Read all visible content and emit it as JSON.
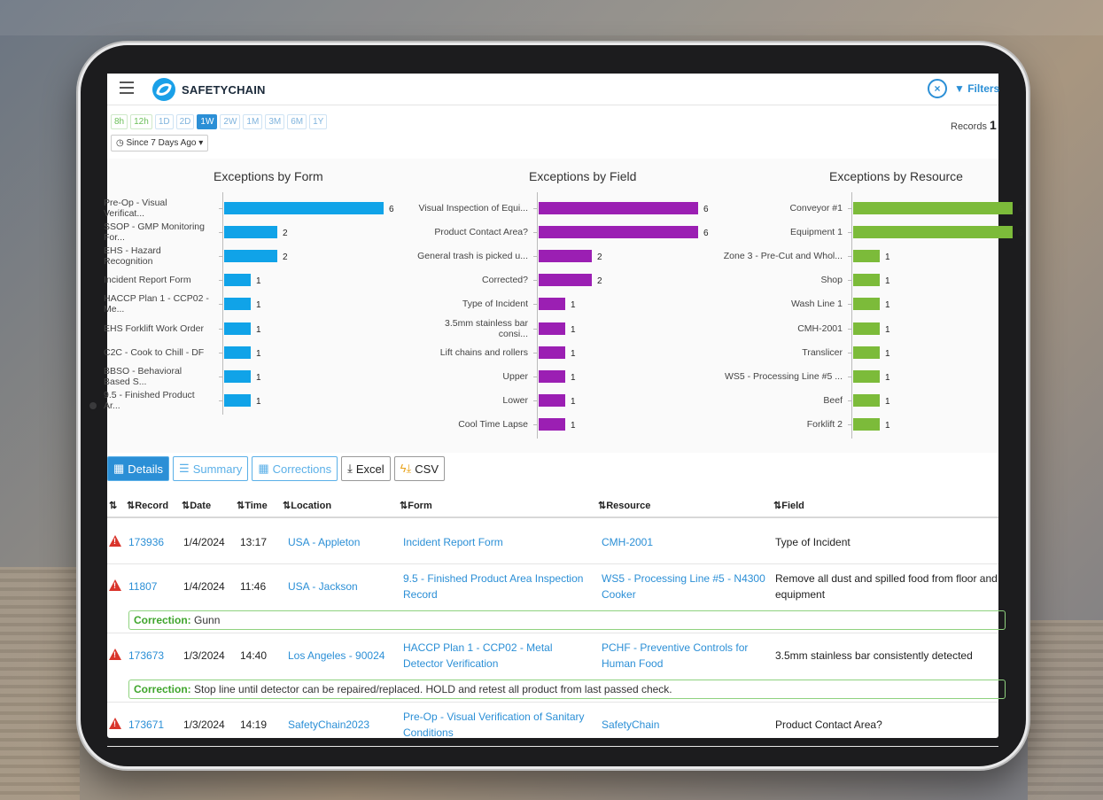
{
  "app": {
    "name_bold": "SAFETY",
    "name_rest": "CHAIN",
    "filters_label": "Filters",
    "clear_label": "×"
  },
  "ranges": [
    "8h",
    "12h",
    "1D",
    "2D",
    "1W",
    "2W",
    "1M",
    "3M",
    "6M",
    "1Y"
  ],
  "active_range": "1W",
  "since_label": "Since 7 Days Ago",
  "records_label": "Records",
  "records_count": "1",
  "chart_data": [
    {
      "type": "bar",
      "title": "Exceptions by Form",
      "categories": [
        "Pre-Op - Visual Verificat...",
        "SSOP - GMP Monitoring For...",
        "EHS - Hazard Recognition",
        "Incident Report Form",
        "HACCP Plan 1 - CCP02 - Me...",
        "EHS Forklift Work Order",
        "C2C - Cook to Chill - DF",
        "BBSO - Behavioral Based S...",
        "9.5 - Finished Product Ar..."
      ],
      "values": [
        6,
        2,
        2,
        1,
        1,
        1,
        1,
        1,
        1
      ],
      "color": "#10a3e8"
    },
    {
      "type": "bar",
      "title": "Exceptions by Field",
      "categories": [
        "Visual Inspection of Equi...",
        "Product Contact Area?",
        "General trash is picked u...",
        "Corrected?",
        "Type of Incident",
        "3.5mm stainless bar consi...",
        "Lift chains and rollers",
        "Upper",
        "Lower",
        "Cool Time Lapse"
      ],
      "values": [
        6,
        6,
        2,
        2,
        1,
        1,
        1,
        1,
        1,
        1
      ],
      "color": "#9b1fb3"
    },
    {
      "type": "bar",
      "title": "Exceptions by Resource",
      "categories": [
        "Conveyor #1",
        "Equipment 1",
        "Zone 3 - Pre-Cut and Whol...",
        "Shop",
        "Wash Line 1",
        "CMH-2001",
        "Translicer",
        "WS5 - Processing Line #5 ...",
        "Beef",
        "Forklift 2"
      ],
      "values": [
        6,
        6,
        1,
        1,
        1,
        1,
        1,
        1,
        1,
        1
      ],
      "color": "#7cbb3a"
    }
  ],
  "tabs": {
    "details": "Details",
    "summary": "Summary",
    "corrections": "Corrections",
    "excel": "Excel",
    "csv": "CSV"
  },
  "table": {
    "headers": {
      "record": "Record",
      "date": "Date",
      "time": "Time",
      "location": "Location",
      "form": "Form",
      "resource": "Resource",
      "field": "Field"
    },
    "rows": [
      {
        "record": "173936",
        "date": "1/4/2024",
        "time": "13:17",
        "location": "USA - Appleton",
        "form": "Incident Report Form",
        "resource": "CMH-2001",
        "field": "Type of Incident"
      },
      {
        "record": "11807",
        "date": "1/4/2024",
        "time": "11:46",
        "location": "USA - Jackson",
        "form": "9.5 - Finished Product Area Inspection Record",
        "resource": "WS5 - Processing Line #5 - N4300 Cooker",
        "field": "Remove all dust and spilled food from floor and equipment",
        "correction": "Gunn"
      },
      {
        "record": "173673",
        "date": "1/3/2024",
        "time": "14:40",
        "location": "Los Angeles - 90024",
        "form": "HACCP Plan 1 - CCP02 - Metal Detector Verification",
        "resource": "PCHF - Preventive Controls for Human Food",
        "field": "3.5mm stainless bar consistently detected",
        "correction": "Stop line until detector can be repaired/replaced. HOLD and retest all product from last passed check."
      },
      {
        "record": "173671",
        "date": "1/3/2024",
        "time": "14:19",
        "location": "SafetyChain2023",
        "form": "Pre-Op - Visual Verification of Sanitary Conditions",
        "resource": "SafetyChain",
        "field": "Product Contact Area?"
      }
    ],
    "correction_label": "Correction:"
  }
}
